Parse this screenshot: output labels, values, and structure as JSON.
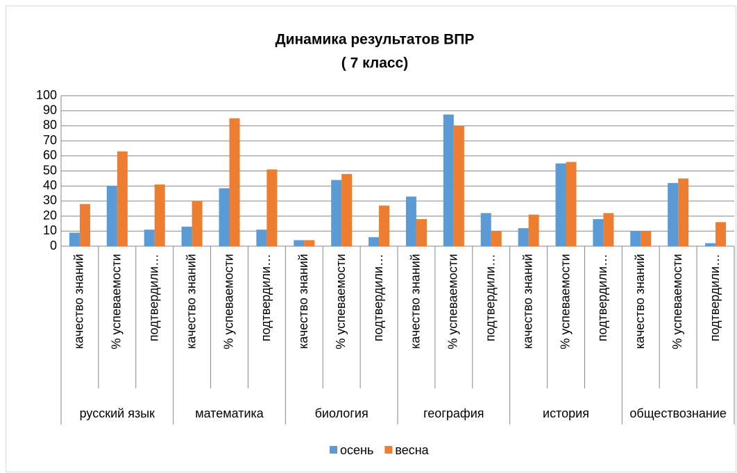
{
  "chart_data": {
    "type": "bar",
    "title": [
      "Динамика результатов ВПР",
      "( 7 класс)"
    ],
    "categories": [
      "качество знаний",
      "% успеваемости",
      "подтвердили…",
      "качество знаний",
      "% успеваемости",
      "подтвердили…",
      "качество знаний",
      "% успеваемости",
      "подтвердили…",
      "качество знаний",
      "% успеваемости",
      "подтвердили…",
      "качество знаний",
      "% успеваемости",
      "подтвердили…",
      "качество знаний",
      "% успеваемости",
      "подтвердили…"
    ],
    "groups": [
      "русский язык",
      "математика",
      "биология",
      "география",
      "история",
      "обществознание"
    ],
    "series": [
      {
        "name": "осень",
        "color": "#5b9bd5",
        "values": [
          9,
          40,
          11,
          13,
          38.5,
          11,
          4,
          44,
          6,
          33,
          87.5,
          22,
          12,
          55,
          18,
          10,
          42,
          2
        ]
      },
      {
        "name": "весна",
        "color": "#ed7d31",
        "values": [
          28,
          63,
          41,
          30,
          85,
          51,
          4,
          48,
          27,
          18,
          80,
          10,
          21,
          56,
          22,
          10,
          45,
          16
        ]
      }
    ],
    "ylim": [
      0,
      100
    ],
    "yticks": [
      0,
      10,
      20,
      30,
      40,
      50,
      60,
      70,
      80,
      90,
      100
    ],
    "grid": true,
    "legend": "bottom"
  }
}
